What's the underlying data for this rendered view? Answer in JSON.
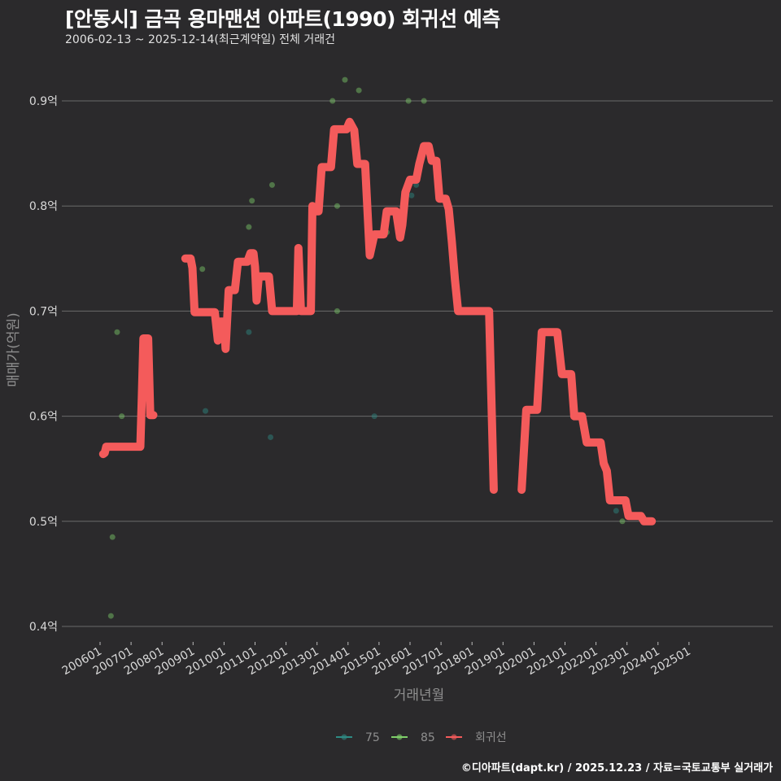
{
  "header": {
    "title": "[안동시] 금곡 용마맨션 아파트(1990) 회귀선 예측",
    "subtitle": "2006-02-13 ~ 2025-12-14(최근계약일) 전체 거래건"
  },
  "footer": {
    "credit": "©디아파트(dapt.kr) / 2025.12.23 / 자료=국토교통부 실거래가"
  },
  "colors": {
    "background": "#2b2a2c",
    "grid": "#6a6a6a",
    "series_75": "#2e8b84",
    "series_85": "#7fcf6a",
    "regression": "#f45b5b"
  },
  "chart_data": {
    "type": "line",
    "title": "[안동시] 금곡 용마맨션 아파트(1990) 회귀선 예측",
    "subtitle": "2006-02-13 ~ 2025-12-14(최근계약일) 전체 거래건",
    "xlabel": "거래년월",
    "ylabel": "매매가(억원)",
    "ylim": [
      0.38,
      0.94
    ],
    "yticks": [
      0.4,
      0.5,
      0.6,
      0.7,
      0.8,
      0.9
    ],
    "ytick_labels": [
      "0.4억",
      "0.5억",
      "0.6억",
      "0.7억",
      "0.8억",
      "0.9억"
    ],
    "xticks": [
      "200601",
      "200701",
      "200801",
      "200901",
      "201001",
      "201101",
      "201201",
      "201301",
      "201401",
      "201501",
      "201601",
      "201701",
      "201801",
      "201901",
      "202001",
      "202101",
      "202201",
      "202301",
      "202401",
      "202501"
    ],
    "grid": true,
    "legend": {
      "position": "bottom",
      "entries": [
        "75",
        "85",
        "회귀선"
      ]
    },
    "series": [
      {
        "name": "회귀선",
        "kind": "line",
        "points": [
          [
            2006.1,
            0.564
          ],
          [
            2006.15,
            0.565
          ],
          [
            2006.2,
            0.571
          ],
          [
            2006.5,
            0.571
          ],
          [
            2007.2,
            0.571
          ],
          [
            2007.3,
            0.571
          ],
          [
            2007.35,
            0.62
          ],
          [
            2007.4,
            0.674
          ],
          [
            2007.55,
            0.674
          ],
          [
            2007.62,
            0.601
          ],
          [
            2007.72,
            0.601
          ],
          [
            2008.75,
            0.75
          ],
          [
            2008.92,
            0.75
          ],
          [
            2008.98,
            0.741
          ],
          [
            2009.05,
            0.699
          ],
          [
            2009.55,
            0.699
          ],
          [
            2009.7,
            0.699
          ],
          [
            2009.8,
            0.672
          ],
          [
            2009.88,
            0.69
          ],
          [
            2010.0,
            0.69
          ],
          [
            2010.05,
            0.664
          ],
          [
            2010.15,
            0.72
          ],
          [
            2010.35,
            0.72
          ],
          [
            2010.45,
            0.747
          ],
          [
            2010.75,
            0.747
          ],
          [
            2010.85,
            0.755
          ],
          [
            2010.95,
            0.755
          ],
          [
            2011.0,
            0.742
          ],
          [
            2011.05,
            0.71
          ],
          [
            2011.12,
            0.733
          ],
          [
            2011.45,
            0.733
          ],
          [
            2011.55,
            0.7
          ],
          [
            2012.35,
            0.7
          ],
          [
            2012.4,
            0.76
          ],
          [
            2012.48,
            0.7
          ],
          [
            2012.8,
            0.7
          ],
          [
            2012.85,
            0.8
          ],
          [
            2013.0,
            0.795
          ],
          [
            2013.05,
            0.795
          ],
          [
            2013.15,
            0.837
          ],
          [
            2013.45,
            0.837
          ],
          [
            2013.55,
            0.873
          ],
          [
            2013.95,
            0.873
          ],
          [
            2014.05,
            0.88
          ],
          [
            2014.2,
            0.872
          ],
          [
            2014.3,
            0.84
          ],
          [
            2014.55,
            0.84
          ],
          [
            2014.7,
            0.753
          ],
          [
            2014.85,
            0.773
          ],
          [
            2015.15,
            0.773
          ],
          [
            2015.25,
            0.795
          ],
          [
            2015.55,
            0.795
          ],
          [
            2015.68,
            0.77
          ],
          [
            2015.75,
            0.782
          ],
          [
            2015.85,
            0.813
          ],
          [
            2016.0,
            0.825
          ],
          [
            2016.2,
            0.825
          ],
          [
            2016.3,
            0.84
          ],
          [
            2016.45,
            0.857
          ],
          [
            2016.6,
            0.857
          ],
          [
            2016.7,
            0.843
          ],
          [
            2016.85,
            0.843
          ],
          [
            2016.95,
            0.807
          ],
          [
            2017.15,
            0.807
          ],
          [
            2017.25,
            0.797
          ],
          [
            2017.35,
            0.766
          ],
          [
            2017.45,
            0.73
          ],
          [
            2017.55,
            0.7
          ],
          [
            2018.35,
            0.7
          ],
          [
            2018.55,
            0.7
          ],
          [
            2018.7,
            0.53
          ],
          [
            2019.6,
            0.53
          ],
          [
            2019.75,
            0.606
          ],
          [
            2020.1,
            0.606
          ],
          [
            2020.25,
            0.68
          ],
          [
            2020.75,
            0.68
          ],
          [
            2020.9,
            0.64
          ],
          [
            2021.2,
            0.64
          ],
          [
            2021.3,
            0.6
          ],
          [
            2021.55,
            0.6
          ],
          [
            2021.7,
            0.575
          ],
          [
            2022.15,
            0.575
          ],
          [
            2022.25,
            0.555
          ],
          [
            2022.35,
            0.548
          ],
          [
            2022.45,
            0.52
          ],
          [
            2022.95,
            0.52
          ],
          [
            2023.05,
            0.505
          ],
          [
            2023.45,
            0.505
          ],
          [
            2023.55,
            0.5
          ],
          [
            2023.8,
            0.5
          ]
        ]
      },
      {
        "name": "85",
        "kind": "scatter",
        "points": [
          [
            2006.4,
            0.485
          ],
          [
            2006.35,
            0.41
          ],
          [
            2006.55,
            0.68
          ],
          [
            2006.7,
            0.6
          ],
          [
            2008.9,
            0.75
          ],
          [
            2009.3,
            0.74
          ],
          [
            2010.8,
            0.78
          ],
          [
            2010.9,
            0.805
          ],
          [
            2011.55,
            0.82
          ],
          [
            2013.5,
            0.9
          ],
          [
            2013.65,
            0.8
          ],
          [
            2013.65,
            0.7
          ],
          [
            2013.9,
            0.92
          ],
          [
            2014.35,
            0.91
          ],
          [
            2015.95,
            0.9
          ],
          [
            2016.45,
            0.9
          ],
          [
            2015.25,
            0.775
          ],
          [
            2022.85,
            0.5
          ]
        ]
      },
      {
        "name": "75",
        "kind": "scatter",
        "points": [
          [
            2009.4,
            0.605
          ],
          [
            2010.8,
            0.68
          ],
          [
            2011.5,
            0.58
          ],
          [
            2012.55,
            0.7
          ],
          [
            2014.85,
            0.6
          ],
          [
            2016.2,
            0.82
          ],
          [
            2016.05,
            0.81
          ],
          [
            2022.65,
            0.51
          ]
        ]
      }
    ]
  }
}
